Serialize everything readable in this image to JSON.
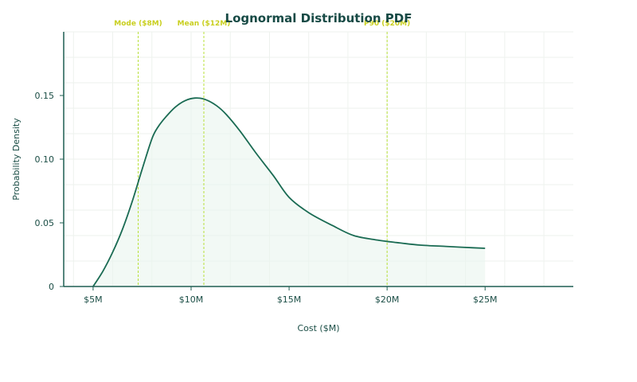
{
  "chart_data": {
    "type": "area",
    "title": "Lognormal Distribution PDF",
    "xlabel": "Cost ($M)",
    "ylabel": "Probability Density",
    "xlim": [
      3.5,
      29.5
    ],
    "ylim": [
      0,
      0.2
    ],
    "x_ticks": [
      {
        "value": 5,
        "label": "$5M"
      },
      {
        "value": 10,
        "label": "$10M"
      },
      {
        "value": 15,
        "label": "$15M"
      },
      {
        "value": 20,
        "label": "$20M"
      },
      {
        "value": 25,
        "label": "$25M"
      }
    ],
    "y_ticks": [
      {
        "value": 0,
        "label": "0"
      },
      {
        "value": 0.05,
        "label": "0.05"
      },
      {
        "value": 0.1,
        "label": "0.10"
      },
      {
        "value": 0.15,
        "label": "0.15"
      }
    ],
    "grid": true,
    "series": [
      {
        "x": [
          5,
          5.5,
          6,
          6.5,
          7,
          7.5,
          8,
          8.3,
          8.7,
          9.2,
          9.7,
          10.2,
          10.7,
          11.3,
          11.8,
          12.5,
          13.3,
          14.2,
          15,
          16,
          17.2,
          18.3,
          19.5,
          20.5,
          21.7,
          23,
          24,
          25
        ],
        "y": [
          0.0,
          0.012,
          0.027,
          0.045,
          0.067,
          0.092,
          0.116,
          0.125,
          0.133,
          0.141,
          0.146,
          0.148,
          0.147,
          0.142,
          0.135,
          0.122,
          0.105,
          0.087,
          0.07,
          0.058,
          0.048,
          0.04,
          0.0365,
          0.0345,
          0.0325,
          0.0315,
          0.0307,
          0.03
        ]
      }
    ],
    "markers": [
      {
        "x": 7.3,
        "label": "Mode ($8M)"
      },
      {
        "x": 10.65,
        "label": "Mean ($12M)"
      },
      {
        "x": 20,
        "label": "P90 ($20M)"
      }
    ],
    "colors": {
      "line": "#1a6b53",
      "fill": "#e9f5ef",
      "axis": "#1f5f52",
      "grid": "#eef2ee",
      "marker": "#b8e03a",
      "marker_text": "#c9cf1f"
    }
  }
}
